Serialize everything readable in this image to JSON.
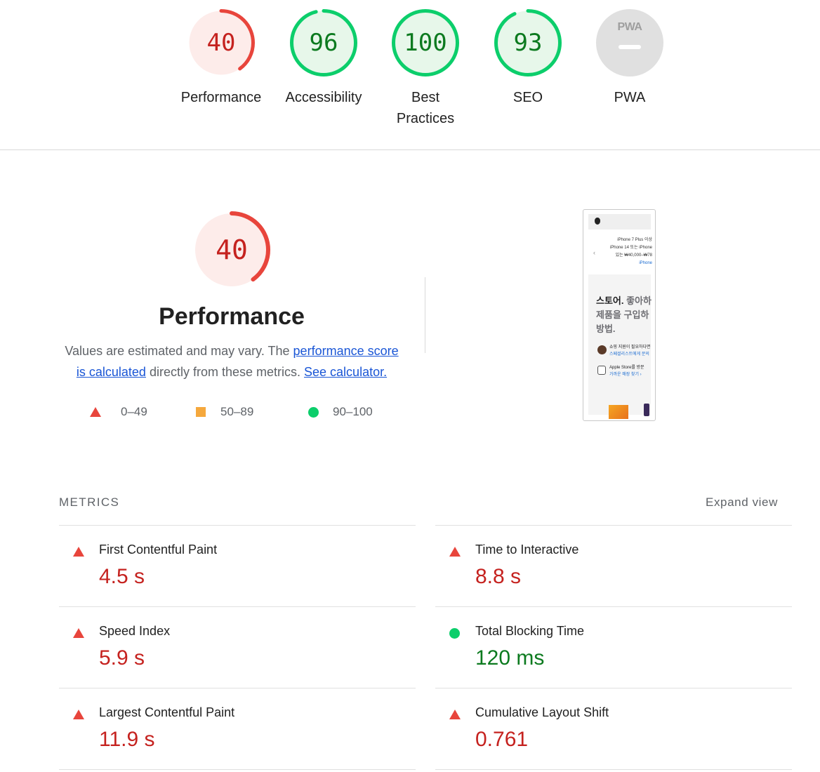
{
  "gauges": [
    {
      "score": "40",
      "label": "Performance",
      "status": "fail",
      "color": "#e8453c",
      "bg": "#fdecea",
      "fraction": 0.4
    },
    {
      "score": "96",
      "label": "Accessibility",
      "status": "pass",
      "color": "#0cce6b",
      "bg": "#e7f7ea",
      "fraction": 0.96
    },
    {
      "score": "100",
      "label": "Best Practices",
      "status": "pass",
      "color": "#0cce6b",
      "bg": "#e7f7ea",
      "fraction": 1.0
    },
    {
      "score": "93",
      "label": "SEO",
      "status": "pass",
      "color": "#0cce6b",
      "bg": "#e7f7ea",
      "fraction": 0.93
    },
    {
      "score": "PWA",
      "label": "PWA",
      "status": "na",
      "color": "#9e9e9e",
      "bg": "#e0e0e0",
      "fraction": 0
    }
  ],
  "performance": {
    "score": "40",
    "fraction": 0.4,
    "title": "Performance",
    "desc_pre": "Values are estimated and may vary. The ",
    "desc_link1": "performance score is calculated",
    "desc_mid": " directly from these metrics. ",
    "desc_link2": "See calculator."
  },
  "legend": [
    {
      "shape": "triangle",
      "range": "0–49",
      "color": "#e8453c"
    },
    {
      "shape": "square",
      "range": "50–89",
      "color": "#f5a83d"
    },
    {
      "shape": "circle",
      "range": "90–100",
      "color": "#0cce6b"
    }
  ],
  "screenshot": {
    "notice_line1": "iPhone 7 Plus 이상",
    "notice_line2": "iPhone 14 또는 iPhone",
    "notice_line3": "있는 ₩40,000–₩78",
    "notice_link": "iPhone",
    "headline_bold": "스토어.",
    "headline_rest1": " 좋아하",
    "headline_line2": "제품을 구입하",
    "headline_line3": "방법.",
    "row1_title": "쇼핑 지원이 필요하다면",
    "row1_link": "스페셜리스트에게 문의",
    "row2_title": "Apple Store를 방문",
    "row2_link": "가까운 매장 찾기 ›"
  },
  "metrics": {
    "header": "METRICS",
    "expand_label": "Expand view",
    "items": [
      {
        "name": "First Contentful Paint",
        "value": "4.5 s",
        "status": "fail"
      },
      {
        "name": "Time to Interactive",
        "value": "8.8 s",
        "status": "fail"
      },
      {
        "name": "Speed Index",
        "value": "5.9 s",
        "status": "fail"
      },
      {
        "name": "Total Blocking Time",
        "value": "120 ms",
        "status": "pass"
      },
      {
        "name": "Largest Contentful Paint",
        "value": "11.9 s",
        "status": "fail"
      },
      {
        "name": "Cumulative Layout Shift",
        "value": "0.761",
        "status": "fail"
      }
    ]
  },
  "colors": {
    "fail": "#e8453c",
    "pass": "#0cce6b",
    "average": "#f5a83d"
  }
}
